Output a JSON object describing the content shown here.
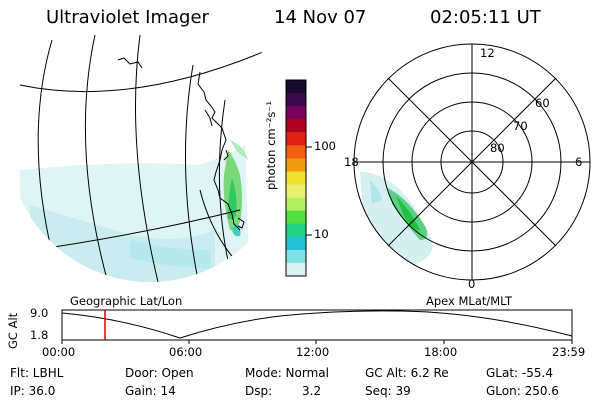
{
  "header": {
    "title": "Ultraviolet Imager",
    "date": "14 Nov 07",
    "time": "02:05:11 UT"
  },
  "colorbar": {
    "unit_label": "photon cm⁻²s⁻¹",
    "ticks": [
      "100",
      "10"
    ],
    "scale": "log",
    "colors": [
      "#1a0a30",
      "#3a0a4a",
      "#7a0060",
      "#b00020",
      "#e02010",
      "#f06010",
      "#f09a10",
      "#f0e030",
      "#e8f070",
      "#b0f060",
      "#50e040",
      "#20d080",
      "#20c0d0",
      "#80e0e8",
      "#d8f0f0"
    ]
  },
  "geo_panel": {
    "caption": "Geographic Lat/Lon"
  },
  "polar_panel": {
    "caption": "Apex MLat/MLT",
    "mlt_labels": {
      "top": "12",
      "right": "6",
      "bottom": "0",
      "left": "18"
    },
    "lat_labels": [
      "60",
      "70",
      "80"
    ]
  },
  "altitude_plot": {
    "ylabel": "GC Alt",
    "ytick_high": "9.0",
    "ytick_low": "1.8",
    "xticks": [
      "00:00",
      "06:00",
      "12:00",
      "18:00",
      "23:59"
    ],
    "marker_color": "#e00000"
  },
  "info": {
    "flt": "Flt: LBHL",
    "ip": "IP: 36.0",
    "door": "Door: Open",
    "gain": "Gain: 14",
    "mode": "Mode: Normal",
    "dsp_label": "Dsp:",
    "dsp_value": "3.2",
    "gc_alt": "GC Alt: 6.2 Re",
    "seq": "Seq: 39",
    "glat": "GLat: -55.4",
    "glon": "GLon: 250.6"
  }
}
